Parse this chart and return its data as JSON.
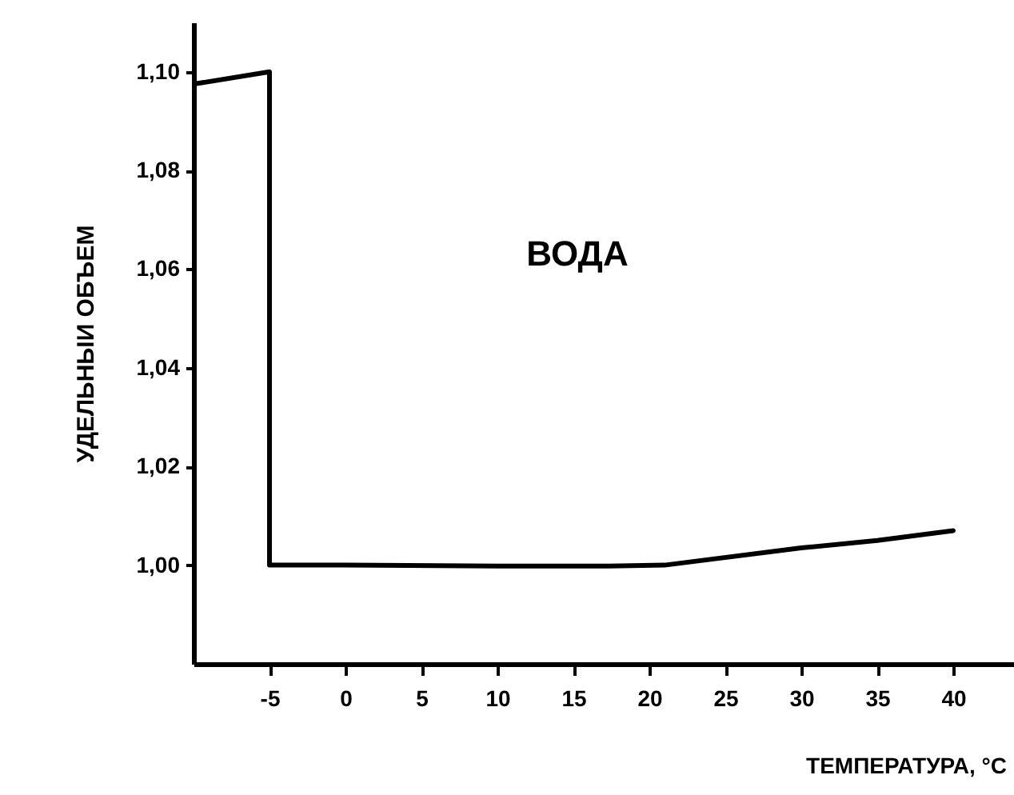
{
  "chart_data": {
    "type": "line",
    "xlabel": "ТЕМПЕРАТУРА, °C",
    "ylabel": "УДЕЛЬНЫИ ОБЪЕМ",
    "annotations": [
      "ВОДА"
    ],
    "x": [
      -10,
      -5,
      -5,
      0,
      10,
      17,
      21,
      30,
      35,
      40
    ],
    "series": [
      {
        "color": "#000000",
        "values": [
          1.0975,
          1.1,
          1.0,
          1.0,
          0.9998,
          0.9998,
          1.0,
          1.0035,
          1.005,
          1.007
        ]
      }
    ],
    "xlim": [
      -10,
      44
    ],
    "xticks": [
      -5,
      0,
      5,
      10,
      15,
      20,
      25,
      30,
      35,
      40
    ],
    "ylim": [
      0.98,
      1.11
    ],
    "yticks": [
      {
        "value": 1.0,
        "label": "1,00"
      },
      {
        "value": 1.02,
        "label": "1,02"
      },
      {
        "value": 1.04,
        "label": "1,04"
      },
      {
        "value": 1.06,
        "label": "1,06"
      },
      {
        "value": 1.08,
        "label": "1,08"
      },
      {
        "value": 1.1,
        "label": "1,10"
      }
    ],
    "grid": false,
    "marker": "none",
    "line_style": "solid"
  }
}
